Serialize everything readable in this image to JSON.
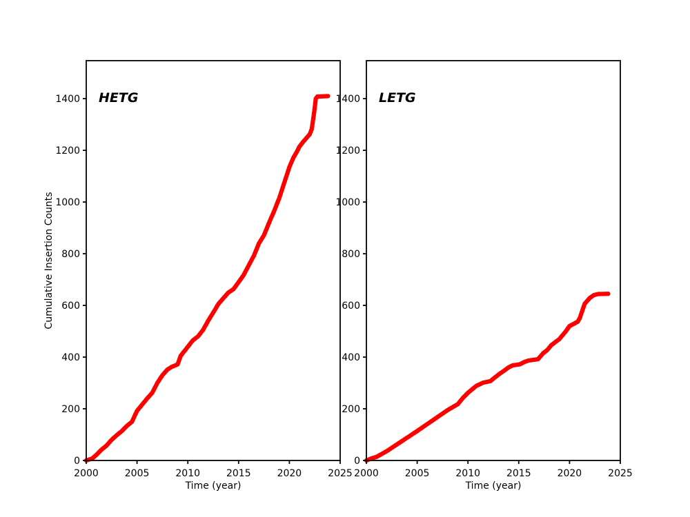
{
  "figure": {
    "background_color": "#ffffff",
    "text_color": "#000000"
  },
  "chart_data": [
    {
      "id": "hetg",
      "type": "scatter",
      "title": "HETG",
      "xlabel": "Time (year)",
      "ylabel": "Cumulative Insertion Counts",
      "xlim": [
        2000,
        2025
      ],
      "ylim": [
        0,
        1547
      ],
      "xticks": [
        2000,
        2005,
        2010,
        2015,
        2020,
        2025
      ],
      "yticks": [
        0,
        200,
        400,
        600,
        800,
        1000,
        1200,
        1400
      ],
      "grid": false,
      "legend": "none",
      "marker_color": "#ff0000",
      "points": [
        [
          2000.0,
          0
        ],
        [
          2000.6,
          8
        ],
        [
          2001.0,
          22
        ],
        [
          2001.5,
          42
        ],
        [
          2002.0,
          58
        ],
        [
          2002.5,
          80
        ],
        [
          2003.0,
          98
        ],
        [
          2003.5,
          114
        ],
        [
          2004.0,
          134
        ],
        [
          2004.5,
          150
        ],
        [
          2005.0,
          192
        ],
        [
          2005.5,
          216
        ],
        [
          2006.0,
          240
        ],
        [
          2006.5,
          262
        ],
        [
          2007.0,
          300
        ],
        [
          2007.5,
          330
        ],
        [
          2008.0,
          352
        ],
        [
          2008.4,
          362
        ],
        [
          2009.0,
          372
        ],
        [
          2009.3,
          405
        ],
        [
          2010.0,
          440
        ],
        [
          2010.5,
          465
        ],
        [
          2011.0,
          480
        ],
        [
          2011.5,
          505
        ],
        [
          2012.0,
          540
        ],
        [
          2012.5,
          572
        ],
        [
          2013.0,
          605
        ],
        [
          2013.5,
          628
        ],
        [
          2014.0,
          650
        ],
        [
          2014.5,
          663
        ],
        [
          2015.0,
          690
        ],
        [
          2015.5,
          718
        ],
        [
          2016.0,
          755
        ],
        [
          2016.5,
          792
        ],
        [
          2017.0,
          840
        ],
        [
          2017.5,
          872
        ],
        [
          2018.0,
          920
        ],
        [
          2018.5,
          965
        ],
        [
          2019.0,
          1015
        ],
        [
          2019.5,
          1075
        ],
        [
          2020.0,
          1135
        ],
        [
          2020.4,
          1172
        ],
        [
          2020.7,
          1192
        ],
        [
          2021.0,
          1215
        ],
        [
          2021.4,
          1235
        ],
        [
          2022.0,
          1262
        ],
        [
          2022.2,
          1282
        ],
        [
          2022.45,
          1350
        ],
        [
          2022.6,
          1400
        ],
        [
          2022.75,
          1408
        ],
        [
          2023.8,
          1410
        ]
      ]
    },
    {
      "id": "letg",
      "type": "scatter",
      "title": "LETG",
      "xlabel": "Time (year)",
      "ylabel": "",
      "xlim": [
        2000,
        2025
      ],
      "ylim": [
        0,
        1547
      ],
      "xticks": [
        2000,
        2005,
        2010,
        2015,
        2020,
        2025
      ],
      "yticks": [
        0,
        200,
        400,
        600,
        800,
        1000,
        1200,
        1400
      ],
      "grid": false,
      "legend": "none",
      "marker_color": "#ff0000",
      "points": [
        [
          2000.0,
          0
        ],
        [
          2000.5,
          8
        ],
        [
          2001.0,
          14
        ],
        [
          2002.0,
          36
        ],
        [
          2003.0,
          62
        ],
        [
          2004.0,
          88
        ],
        [
          2005.0,
          114
        ],
        [
          2006.0,
          141
        ],
        [
          2007.0,
          168
        ],
        [
          2008.0,
          195
        ],
        [
          2009.0,
          218
        ],
        [
          2009.5,
          242
        ],
        [
          2010.0,
          262
        ],
        [
          2010.8,
          288
        ],
        [
          2011.5,
          301
        ],
        [
          2012.2,
          307
        ],
        [
          2013.0,
          332
        ],
        [
          2014.0,
          360
        ],
        [
          2014.4,
          368
        ],
        [
          2015.1,
          372
        ],
        [
          2015.6,
          382
        ],
        [
          2016.0,
          387
        ],
        [
          2016.9,
          392
        ],
        [
          2017.4,
          415
        ],
        [
          2017.8,
          427
        ],
        [
          2018.2,
          446
        ],
        [
          2019.0,
          470
        ],
        [
          2019.6,
          498
        ],
        [
          2020.0,
          520
        ],
        [
          2020.8,
          537
        ],
        [
          2021.0,
          550
        ],
        [
          2021.5,
          607
        ],
        [
          2022.0,
          629
        ],
        [
          2022.4,
          640
        ],
        [
          2022.8,
          644
        ],
        [
          2023.8,
          645
        ]
      ]
    }
  ]
}
